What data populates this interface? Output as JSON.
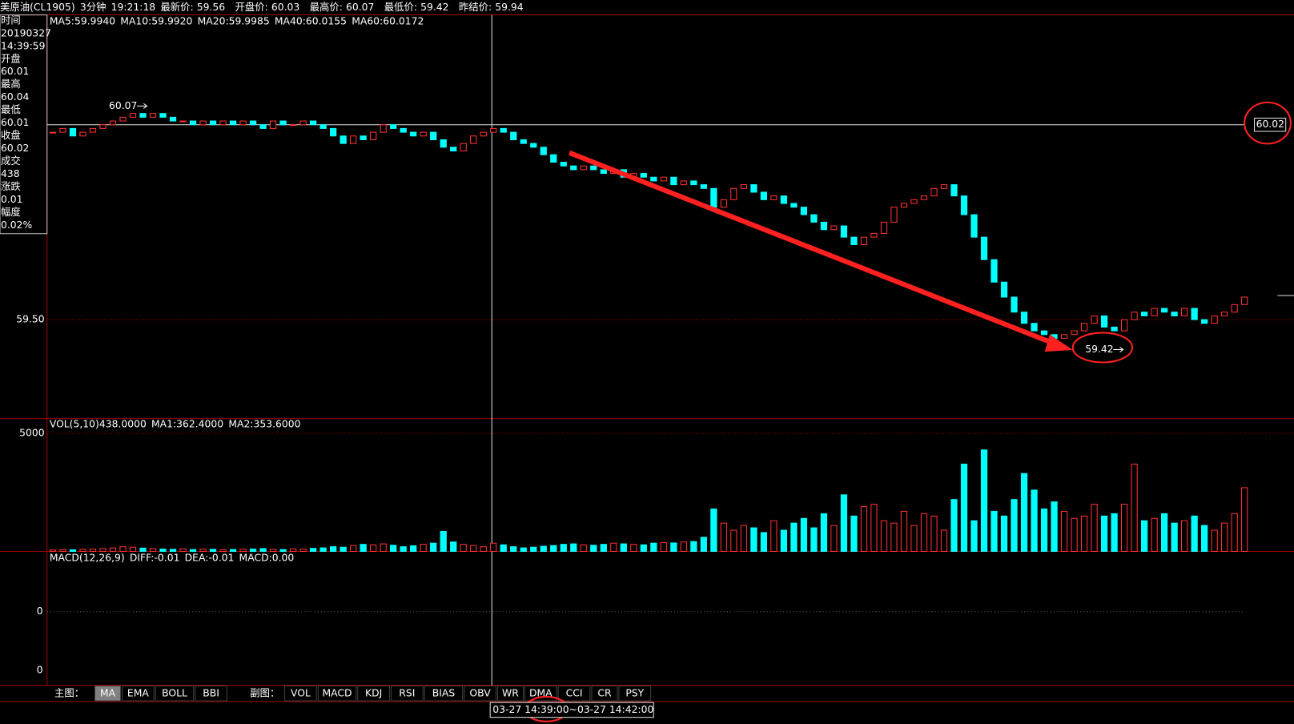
{
  "header": {
    "name": "美原油(CL1905)",
    "period": "3分钟",
    "time": "19:21:18",
    "fields": [
      {
        "label": "最新价:",
        "value": "59.56",
        "color": "#ff3232"
      },
      {
        "label": "开盘价:",
        "value": "60.03",
        "color": "#ffffff"
      },
      {
        "label": "最高价:",
        "value": "60.07",
        "color": "#ff3232"
      },
      {
        "label": "最低价:",
        "value": "59.42",
        "color": "#ff3232"
      },
      {
        "label": "昨结价:",
        "value": "59.94",
        "color": "#ff3232"
      }
    ]
  },
  "info_panel": [
    {
      "text": "时间",
      "color": "#ffffff"
    },
    {
      "text": "20190327",
      "color": "#ffffff"
    },
    {
      "text": "14:39:59",
      "color": "#ffffff"
    },
    {
      "text": "开盘",
      "color": "#ffffff"
    },
    {
      "text": "60.01",
      "color": "#ffffff"
    },
    {
      "text": "最高",
      "color": "#ffffff"
    },
    {
      "text": "60.04",
      "color": "#ff3232"
    },
    {
      "text": "最低",
      "color": "#ffffff"
    },
    {
      "text": "60.01",
      "color": "#ffffff"
    },
    {
      "text": "收盘",
      "color": "#ffffff"
    },
    {
      "text": "60.02",
      "color": "#ff3232"
    },
    {
      "text": "成交",
      "color": "#ffffff"
    },
    {
      "text": "438",
      "color": "#ffff00"
    },
    {
      "text": "涨跌",
      "color": "#ffffff"
    },
    {
      "text": "0.01",
      "color": "#ff3232"
    },
    {
      "text": "幅度",
      "color": "#ffffff"
    },
    {
      "text": "0.02%",
      "color": "#00ff00"
    }
  ],
  "price_chart": {
    "legend": [
      {
        "text": "MA5:59.9940",
        "color": "#ffffff"
      },
      {
        "text": "MA10:59.9920",
        "color": "#ffff00"
      },
      {
        "text": "MA20:59.9985",
        "color": "#ff00ff"
      },
      {
        "text": "MA40:60.0155",
        "color": "#00ff00"
      },
      {
        "text": "MA60:60.0172",
        "color": "#8080ff"
      }
    ],
    "ylim": [
      59.236,
      60.313
    ],
    "yticks": [
      {
        "value": 59.5,
        "label": "59.50"
      }
    ],
    "crosshair_price": {
      "value": 60.02,
      "label": "60.02"
    },
    "high_label": {
      "value": 60.07,
      "label": "60.07"
    },
    "low_label": {
      "value": 59.42,
      "label": "59.42"
    },
    "up_color": "#ff3232",
    "down_color": "#00ffff",
    "closes": [
      60.0,
      60.01,
      59.99,
      60.0,
      60.01,
      60.02,
      60.03,
      60.04,
      60.05,
      60.04,
      60.05,
      60.04,
      60.03,
      60.03,
      60.02,
      60.03,
      60.02,
      60.03,
      60.02,
      60.03,
      60.02,
      60.01,
      60.03,
      60.02,
      60.02,
      60.03,
      60.02,
      60.01,
      59.99,
      59.97,
      59.99,
      59.98,
      60.0,
      60.02,
      60.01,
      60.0,
      59.99,
      60.0,
      59.98,
      59.96,
      59.95,
      59.97,
      59.99,
      60.0,
      60.01,
      60.0,
      59.98,
      59.97,
      59.96,
      59.94,
      59.92,
      59.91,
      59.9,
      59.91,
      59.9,
      59.89,
      59.9,
      59.88,
      59.89,
      59.88,
      59.87,
      59.88,
      59.86,
      59.87,
      59.86,
      59.85,
      59.8,
      59.82,
      59.85,
      59.86,
      59.84,
      59.82,
      59.83,
      59.81,
      59.8,
      59.78,
      59.76,
      59.74,
      59.75,
      59.72,
      59.7,
      59.72,
      59.73,
      59.76,
      59.8,
      59.81,
      59.82,
      59.83,
      59.85,
      59.86,
      59.83,
      59.78,
      59.72,
      59.66,
      59.6,
      59.56,
      59.52,
      59.49,
      59.47,
      59.46,
      59.45,
      59.46,
      59.47,
      59.49,
      59.51,
      59.48,
      59.47,
      59.5,
      59.52,
      59.51,
      59.53,
      59.52,
      59.51,
      59.53,
      59.5,
      59.49,
      59.51,
      59.52,
      59.54,
      59.56
    ]
  },
  "volume_chart": {
    "legend": [
      {
        "text": "VOL(5,10)438.0000",
        "color": "#ffffff"
      },
      {
        "text": "MA1:362.4000",
        "color": "#ffffff"
      },
      {
        "text": "MA2:353.6000",
        "color": "#ffff00"
      }
    ],
    "ylim": [
      0,
      5630
    ],
    "yticks": [
      5000
    ],
    "values": [
      60,
      80,
      70,
      90,
      100,
      120,
      150,
      200,
      180,
      140,
      120,
      100,
      90,
      110,
      80,
      100,
      90,
      70,
      80,
      90,
      100,
      120,
      90,
      80,
      110,
      100,
      130,
      150,
      200,
      180,
      250,
      300,
      280,
      320,
      260,
      200,
      240,
      300,
      350,
      850,
      400,
      300,
      250,
      200,
      350,
      280,
      200,
      150,
      180,
      220,
      250,
      300,
      320,
      280,
      260,
      300,
      350,
      320,
      300,
      280,
      350,
      380,
      360,
      400,
      420,
      600,
      1800,
      1200,
      900,
      1100,
      1000,
      800,
      1300,
      900,
      1200,
      1400,
      1000,
      1600,
      1100,
      2400,
      1500,
      1900,
      2000,
      1300,
      1200,
      1700,
      1100,
      1600,
      1500,
      900,
      2200,
      3700,
      1300,
      4300,
      1700,
      1500,
      2200,
      3300,
      2600,
      1800,
      2100,
      1700,
      1400,
      1500,
      2000,
      1500,
      1600,
      2000,
      3700,
      1300,
      1400,
      1600,
      1200,
      1300,
      1500,
      1100,
      900,
      1200,
      1600,
      2700
    ]
  },
  "macd_chart": {
    "legend": [
      {
        "text": "MACD(12,26,9)",
        "color": "#ffffff"
      },
      {
        "text": "DIFF:-0.01",
        "color": "#ffffff"
      },
      {
        "text": "DEA:-0.01",
        "color": "#ffff00"
      },
      {
        "text": "MACD:0.00",
        "color": "#ff00ff"
      }
    ],
    "axis_labels": [
      "0",
      "0"
    ]
  },
  "toolbar": {
    "main_label": "主图：",
    "main": [
      "MA",
      "EMA",
      "BOLL",
      "BBI"
    ],
    "selected": "MA",
    "sub_label": "副图：",
    "sub": [
      "VOL",
      "MACD",
      "KDJ",
      "RSI",
      "BIAS",
      "OBV",
      "WR",
      "DMA",
      "CCI",
      "CR",
      "PSY"
    ]
  },
  "status": "03-27 14:39:00~03-27 14:42:00"
}
